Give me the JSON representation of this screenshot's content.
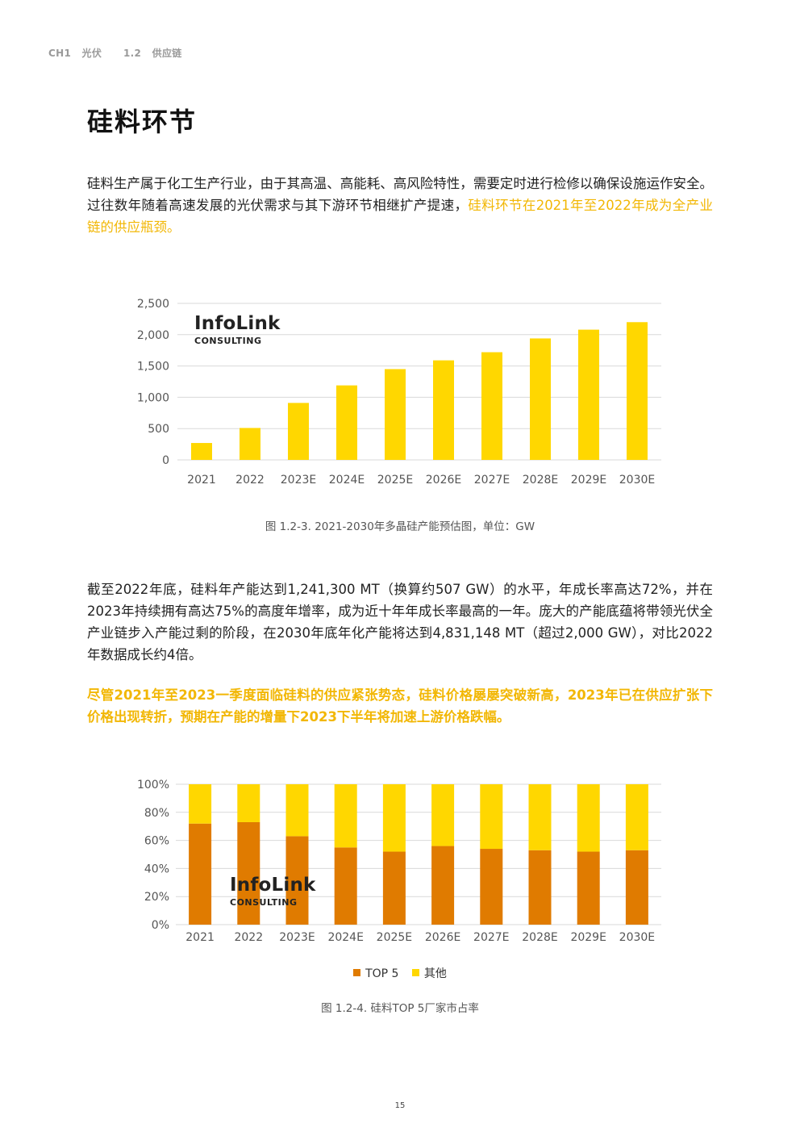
{
  "header": {
    "chapter": "CH1",
    "chapter_name": "光伏",
    "section_no": "1.2",
    "section_name": "供应链"
  },
  "title": "硅料环节",
  "para1": {
    "text": "硅料生产属于化工生产行业，由于其高温、高能耗、高风险特性，需要定时进行检修以确保设施运作安全。过往数年随着高速发展的光伏需求与其下游环节相继扩产提速，",
    "highlight": "硅料环节在2021年至2022年成为全产业链的供应瓶颈。"
  },
  "para2": "截至2022年底，硅料年产能达到1,241,300 MT（换算约507 GW）的水平，年成长率高达72%，并在2023年持续拥有高达75%的高度年增率，成为近十年年成长率最高的一年。庞大的产能底蕴将带领光伏全产业链步入产能过剩的阶段，在2030年底年化产能将达到4,831,148 MT（超过2,000 GW），对比2022年数据成长约4倍。",
  "para3": "尽管2021年至2023一季度面临硅料的供应紧张势态，硅料价格屡屡突破新高，2023年已在供应扩张下价格出现转折，预期在产能的增量下2023下半年将加速上游价格跌幅。",
  "brand": {
    "name": "InfoLink",
    "sub": "CONSULTING"
  },
  "colors": {
    "yellow": "#ffd700",
    "orange": "#e07b00",
    "accent_text": "#f2b705",
    "grid": "#d9d9d9"
  },
  "chart_data": [
    {
      "type": "bar",
      "categories": [
        "2021",
        "2022",
        "2023E",
        "2024E",
        "2025E",
        "2026E",
        "2027E",
        "2028E",
        "2029E",
        "2030E"
      ],
      "values": [
        270,
        510,
        910,
        1190,
        1450,
        1590,
        1720,
        1940,
        2080,
        2200
      ],
      "ylim": [
        0,
        2500
      ],
      "yticks": [
        "0",
        "500",
        "1,000",
        "1,500",
        "2,000",
        "2,500"
      ],
      "grid": true,
      "caption": "图 1.2-3. 2021-2030年多晶硅产能预估图，单位：GW"
    },
    {
      "type": "bar",
      "stacked": true,
      "categories": [
        "2021",
        "2022",
        "2023E",
        "2024E",
        "2025E",
        "2026E",
        "2027E",
        "2028E",
        "2029E",
        "2030E"
      ],
      "series": [
        {
          "name": "TOP 5",
          "values": [
            72,
            73,
            63,
            55,
            52,
            56,
            54,
            53,
            52,
            53
          ]
        },
        {
          "name": "其他",
          "values": [
            28,
            27,
            37,
            45,
            48,
            44,
            46,
            47,
            48,
            47
          ]
        }
      ],
      "ylim": [
        0,
        100
      ],
      "yticks": [
        "0%",
        "20%",
        "40%",
        "60%",
        "80%",
        "100%"
      ],
      "grid": true,
      "legend": "bottom",
      "caption": "图 1.2-4. 硅料TOP 5厂家市占率"
    }
  ],
  "page_number": "15"
}
